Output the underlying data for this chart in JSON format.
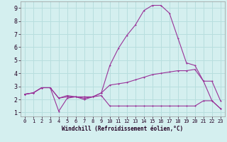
{
  "title": "",
  "xlabel": "Windchill (Refroidissement éolien,°C)",
  "ylabel": "",
  "bg_color": "#d4efef",
  "grid_color": "#b8dede",
  "line_color": "#993399",
  "xlim": [
    -0.5,
    23.5
  ],
  "ylim": [
    0.7,
    9.5
  ],
  "xtick_vals": [
    0,
    1,
    2,
    3,
    4,
    5,
    6,
    7,
    8,
    9,
    10,
    11,
    12,
    13,
    14,
    15,
    16,
    17,
    18,
    19,
    20,
    21,
    22,
    23
  ],
  "xtick_labels": [
    "0",
    "1",
    "2",
    "3",
    "4",
    "5",
    "6",
    "7",
    "8",
    "9",
    "10",
    "11",
    "12",
    "13",
    "14",
    "15",
    "16",
    "17",
    "18",
    "19",
    "20",
    "21",
    "22",
    "23"
  ],
  "ytick_vals": [
    1,
    2,
    3,
    4,
    5,
    6,
    7,
    8,
    9
  ],
  "ytick_labels": [
    "1",
    "2",
    "3",
    "4",
    "5",
    "6",
    "7",
    "8",
    "9"
  ],
  "series1_x": [
    0,
    1,
    2,
    3,
    4,
    5,
    6,
    7,
    8,
    9,
    10,
    11,
    12,
    13,
    14,
    15,
    16,
    17,
    18,
    19,
    20,
    21,
    22,
    23
  ],
  "series1_y": [
    2.4,
    2.5,
    2.9,
    2.9,
    2.1,
    2.3,
    2.2,
    2.1,
    2.2,
    2.5,
    4.6,
    5.9,
    6.9,
    7.7,
    8.8,
    9.2,
    9.2,
    8.6,
    6.7,
    4.8,
    4.6,
    3.4,
    3.4,
    1.9
  ],
  "series2_x": [
    0,
    1,
    2,
    3,
    4,
    5,
    6,
    7,
    8,
    9,
    10,
    11,
    12,
    13,
    14,
    15,
    16,
    17,
    18,
    19,
    20,
    21,
    22,
    23
  ],
  "series2_y": [
    2.4,
    2.5,
    2.9,
    2.9,
    2.1,
    2.2,
    2.2,
    2.2,
    2.2,
    2.5,
    3.1,
    3.2,
    3.3,
    3.5,
    3.7,
    3.9,
    4.0,
    4.1,
    4.2,
    4.2,
    4.3,
    3.4,
    1.9,
    1.3
  ],
  "series3_x": [
    0,
    1,
    2,
    3,
    4,
    5,
    6,
    7,
    8,
    9,
    10,
    11,
    12,
    13,
    14,
    15,
    16,
    17,
    18,
    19,
    20,
    21,
    22,
    23
  ],
  "series3_y": [
    2.4,
    2.5,
    2.9,
    2.9,
    1.1,
    2.1,
    2.2,
    2.0,
    2.2,
    2.3,
    1.5,
    1.5,
    1.5,
    1.5,
    1.5,
    1.5,
    1.5,
    1.5,
    1.5,
    1.5,
    1.5,
    1.9,
    1.9,
    1.3
  ]
}
